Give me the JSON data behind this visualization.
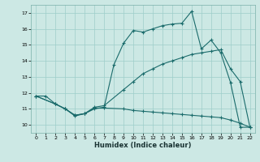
{
  "title": "",
  "xlabel": "Humidex (Indice chaleur)",
  "xlim": [
    -0.5,
    22.5
  ],
  "ylim": [
    9.5,
    17.5
  ],
  "xticks": [
    0,
    1,
    2,
    3,
    4,
    5,
    6,
    7,
    8,
    9,
    10,
    11,
    12,
    13,
    14,
    15,
    16,
    17,
    18,
    19,
    20,
    21,
    22
  ],
  "yticks": [
    10,
    11,
    12,
    13,
    14,
    15,
    16,
    17
  ],
  "bg_color": "#cce8e4",
  "grid_color": "#9dceca",
  "line_color": "#1a6b6b",
  "line1_x": [
    0,
    1,
    2,
    3,
    4,
    5,
    6,
    7,
    8,
    9,
    10,
    11,
    12,
    13,
    14,
    15,
    16,
    17,
    18,
    19,
    20,
    21,
    22
  ],
  "line1_y": [
    11.8,
    11.8,
    11.3,
    11.0,
    10.55,
    10.7,
    11.0,
    11.1,
    13.75,
    15.1,
    15.9,
    15.8,
    16.0,
    16.2,
    16.3,
    16.35,
    17.1,
    14.75,
    15.3,
    14.5,
    12.65,
    9.85,
    9.85
  ],
  "line2_x": [
    0,
    2,
    3,
    4,
    5,
    6,
    7,
    9,
    10,
    11,
    12,
    13,
    14,
    15,
    16,
    17,
    18,
    19,
    20,
    21,
    22
  ],
  "line2_y": [
    11.8,
    11.3,
    11.0,
    10.6,
    10.7,
    11.1,
    11.2,
    12.2,
    12.7,
    13.2,
    13.5,
    13.8,
    14.0,
    14.2,
    14.4,
    14.5,
    14.6,
    14.7,
    13.5,
    12.7,
    9.85
  ],
  "line3_x": [
    0,
    2,
    3,
    4,
    5,
    6,
    7,
    9,
    10,
    11,
    12,
    13,
    14,
    15,
    16,
    17,
    18,
    19,
    20,
    21,
    22
  ],
  "line3_y": [
    11.8,
    11.3,
    11.0,
    10.6,
    10.7,
    11.05,
    11.05,
    11.0,
    10.9,
    10.85,
    10.8,
    10.75,
    10.7,
    10.65,
    10.6,
    10.55,
    10.5,
    10.45,
    10.3,
    10.1,
    9.85
  ]
}
